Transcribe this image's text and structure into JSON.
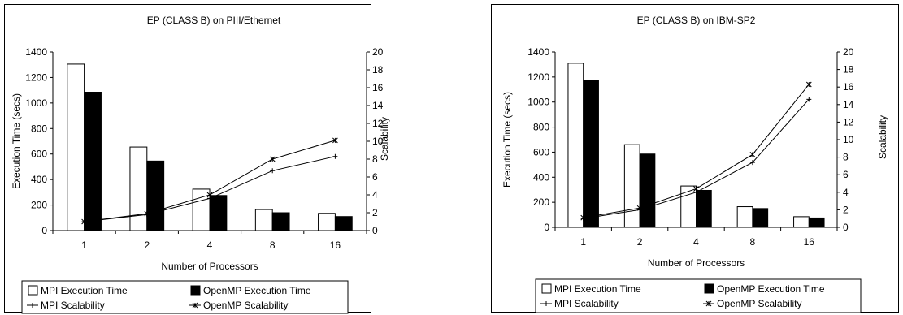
{
  "chart_data": [
    {
      "type": "bar+line",
      "title": "EP (CLASS B) on PIII/Ethernet",
      "xlabel": "Number of Processors",
      "ylabel": "Execution Time (secs)",
      "y2label": "Scalability",
      "categories": [
        "1",
        "2",
        "4",
        "8",
        "16"
      ],
      "ylim": [
        0,
        1400
      ],
      "yticks": [
        "0",
        "200",
        "400",
        "600",
        "800",
        "1000",
        "1200",
        "1400"
      ],
      "y2lim": [
        0,
        20
      ],
      "y2ticks": [
        "0",
        "2",
        "4",
        "6",
        "8",
        "10",
        "12",
        "14",
        "16",
        "18",
        "20"
      ],
      "bar_series": [
        {
          "name": "MPI Execution Time",
          "color": "#ffffff",
          "values": [
            1305,
            655,
            325,
            165,
            135
          ]
        },
        {
          "name": "OpenMP Execution Time",
          "color": "#000000",
          "values": [
            1085,
            545,
            275,
            140,
            110
          ]
        }
      ],
      "line_series": [
        {
          "name": "MPI Scalability",
          "marker": "plus",
          "values": [
            1.0,
            1.8,
            3.6,
            6.7,
            8.3
          ]
        },
        {
          "name": "OpenMP Scalability",
          "marker": "star",
          "values": [
            1.0,
            1.9,
            4.0,
            8.0,
            10.1
          ]
        }
      ],
      "legend_position": "bottom"
    },
    {
      "type": "bar+line",
      "title": "EP (CLASS B) on IBM-SP2",
      "xlabel": "Number of Processors",
      "ylabel": "Execution Time (secs)",
      "y2label": "Scalability",
      "categories": [
        "1",
        "2",
        "4",
        "8",
        "16"
      ],
      "ylim": [
        0,
        1400
      ],
      "yticks": [
        "0",
        "200",
        "400",
        "600",
        "800",
        "1000",
        "1200",
        "1400"
      ],
      "y2lim": [
        0,
        20
      ],
      "y2ticks": [
        "0",
        "2",
        "4",
        "6",
        "8",
        "10",
        "12",
        "14",
        "16",
        "18",
        "20"
      ],
      "bar_series": [
        {
          "name": "MPI Execution Time",
          "color": "#ffffff",
          "values": [
            1310,
            660,
            330,
            165,
            85
          ]
        },
        {
          "name": "OpenMP Execution Time",
          "color": "#000000",
          "values": [
            1170,
            585,
            295,
            150,
            75
          ]
        }
      ],
      "line_series": [
        {
          "name": "MPI Scalability",
          "marker": "plus",
          "values": [
            1.0,
            2.0,
            4.0,
            7.4,
            14.6
          ]
        },
        {
          "name": "OpenMP Scalability",
          "marker": "star",
          "values": [
            1.1,
            2.2,
            4.4,
            8.3,
            16.3
          ]
        }
      ],
      "legend_position": "bottom"
    }
  ]
}
